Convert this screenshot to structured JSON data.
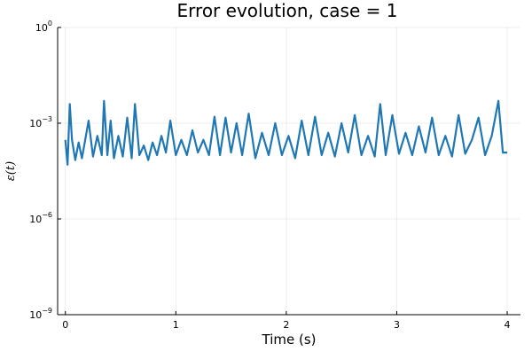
{
  "chart_data": {
    "type": "line",
    "title": "Error evolution, case = 1",
    "xlabel": "Time (s)",
    "ylabel": "ε(t)",
    "xlim": [
      -0.07,
      4.12
    ],
    "ylim": [
      1e-09,
      1
    ],
    "yscale": "log",
    "grid": true,
    "legend": "none",
    "x_ticks": [
      {
        "value": 0,
        "label": "0"
      },
      {
        "value": 1,
        "label": "1"
      },
      {
        "value": 2,
        "label": "2"
      },
      {
        "value": 3,
        "label": "3"
      },
      {
        "value": 4,
        "label": "4"
      }
    ],
    "y_ticks": [
      {
        "value": 1e-09,
        "base": "10",
        "exp": "−9"
      },
      {
        "value": 1e-06,
        "base": "10",
        "exp": "−6"
      },
      {
        "value": 0.001,
        "base": "10",
        "exp": "−3"
      },
      {
        "value": 1,
        "base": "10",
        "exp": "0"
      }
    ],
    "series": [
      {
        "color": "#1f77b4",
        "x": [
          0.0,
          0.02,
          0.04,
          0.06,
          0.09,
          0.12,
          0.15,
          0.18,
          0.21,
          0.25,
          0.29,
          0.33,
          0.35,
          0.38,
          0.41,
          0.44,
          0.48,
          0.52,
          0.56,
          0.6,
          0.63,
          0.67,
          0.71,
          0.75,
          0.79,
          0.83,
          0.87,
          0.91,
          0.95,
          1.0,
          1.05,
          1.1,
          1.15,
          1.2,
          1.25,
          1.3,
          1.35,
          1.4,
          1.45,
          1.5,
          1.55,
          1.6,
          1.66,
          1.72,
          1.78,
          1.84,
          1.9,
          1.96,
          2.02,
          2.08,
          2.14,
          2.2,
          2.26,
          2.32,
          2.38,
          2.44,
          2.5,
          2.56,
          2.62,
          2.68,
          2.74,
          2.8,
          2.85,
          2.9,
          2.96,
          3.02,
          3.08,
          3.14,
          3.2,
          3.26,
          3.32,
          3.38,
          3.44,
          3.5,
          3.56,
          3.62,
          3.68,
          3.74,
          3.8,
          3.86,
          3.92,
          3.96,
          4.0
        ],
        "y": [
          0.0003,
          5e-05,
          0.004,
          0.0003,
          7e-05,
          0.00025,
          8e-05,
          0.0003,
          0.0012,
          9e-05,
          0.0004,
          0.0001,
          0.005,
          0.0001,
          0.0012,
          8e-05,
          0.0004,
          9e-05,
          0.0015,
          8e-05,
          0.004,
          0.0001,
          0.0002,
          7e-05,
          0.00025,
          0.0001,
          0.0004,
          0.00012,
          0.0012,
          0.0001,
          0.0003,
          0.0001,
          0.0006,
          0.00012,
          0.0003,
          0.0001,
          0.0016,
          0.0001,
          0.0015,
          0.00012,
          0.001,
          0.0001,
          0.002,
          8e-05,
          0.0005,
          0.0001,
          0.001,
          0.0001,
          0.0004,
          8e-05,
          0.0012,
          0.0001,
          0.0016,
          0.0001,
          0.0005,
          9e-05,
          0.001,
          0.00012,
          0.0018,
          0.0001,
          0.0004,
          9e-05,
          0.004,
          0.0001,
          0.0018,
          0.00011,
          0.0005,
          0.0001,
          0.0008,
          0.00012,
          0.0015,
          0.0001,
          0.0004,
          9e-05,
          0.0018,
          0.00011,
          0.0003,
          0.0015,
          0.0001,
          0.0004,
          0.005,
          0.00012,
          0.00012
        ]
      }
    ]
  }
}
